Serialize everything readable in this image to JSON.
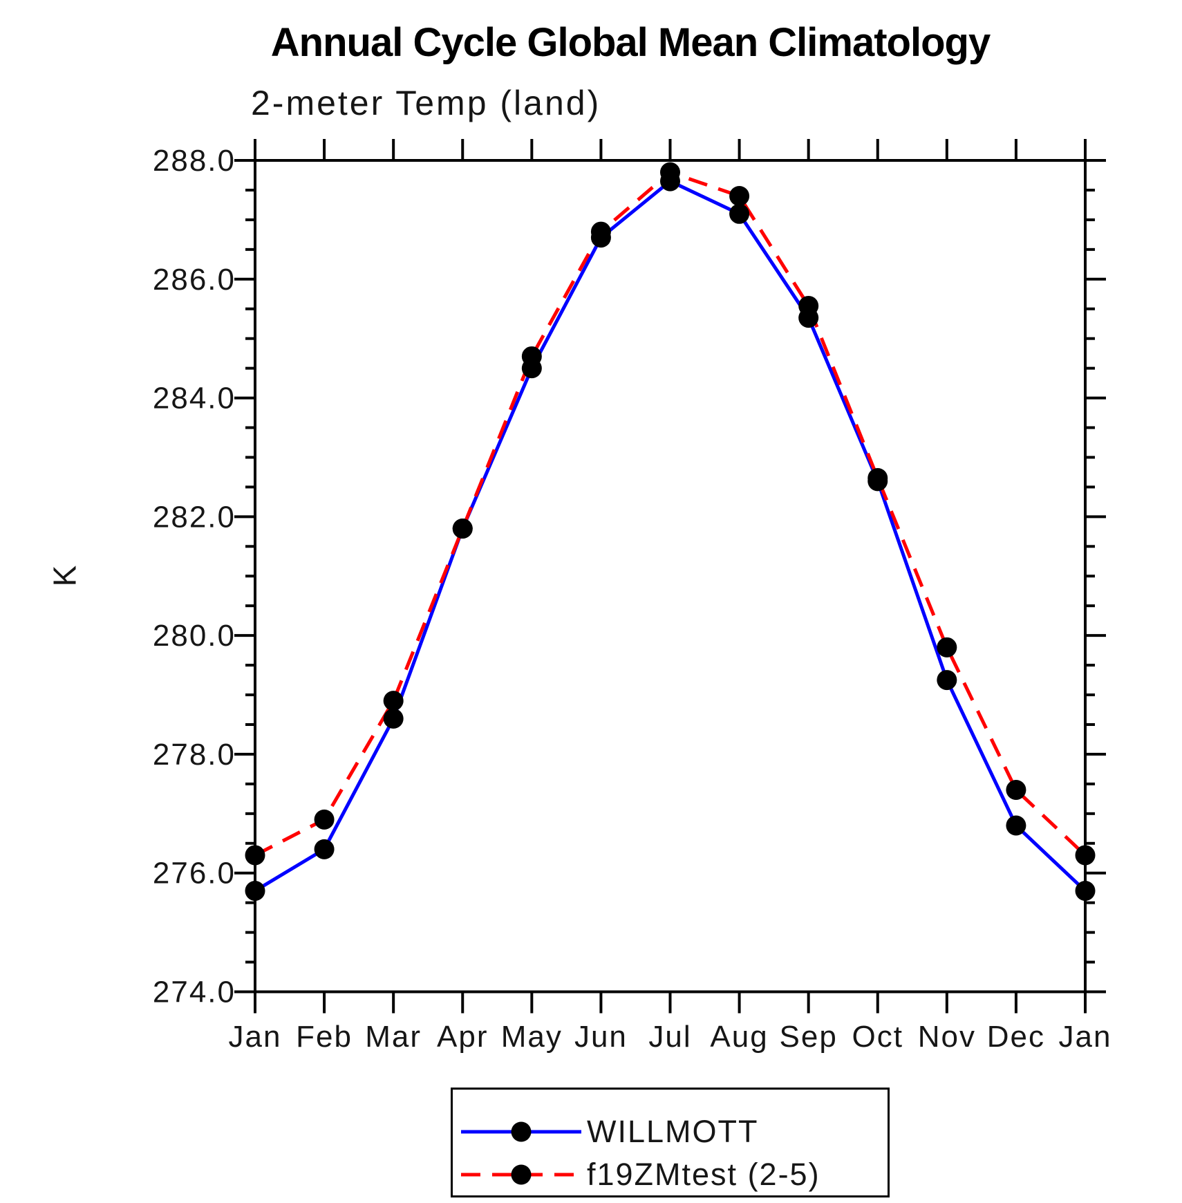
{
  "title": "Annual Cycle Global Mean Climatology",
  "subtitle": "2-meter Temp (land)",
  "y_axis": {
    "label": "K",
    "tick_labels": [
      "288.0",
      "286.0",
      "284.0",
      "282.0",
      "280.0",
      "278.0",
      "276.0",
      "274.0"
    ],
    "min": 274.0,
    "max": 288.0,
    "major_step": 2.0,
    "minor_step": 0.5
  },
  "x_axis": {
    "tick_labels": [
      "Jan",
      "Feb",
      "Mar",
      "Apr",
      "May",
      "Jun",
      "Jul",
      "Aug",
      "Sep",
      "Oct",
      "Nov",
      "Dec",
      "Jan"
    ]
  },
  "legend": {
    "entries": [
      {
        "label": "WILLMOTT",
        "color": "#0000ff",
        "style": "solid"
      },
      {
        "label": "f19ZMtest (2-5)",
        "color": "#ff0000",
        "style": "dashed"
      }
    ]
  },
  "colors": {
    "series_blue": "#0000ff",
    "series_red": "#ff0000",
    "axis": "#000000",
    "marker": "#000000"
  },
  "chart_data": {
    "type": "line",
    "title": "Annual Cycle Global Mean Climatology",
    "subtitle": "2-meter Temp (land)",
    "ylabel": "K",
    "ylim": [
      274.0,
      288.0
    ],
    "y_major_step": 2.0,
    "y_minor_step": 0.5,
    "grid": false,
    "legend_position": "bottom-center",
    "categories": [
      "Jan",
      "Feb",
      "Mar",
      "Apr",
      "May",
      "Jun",
      "Jul",
      "Aug",
      "Sep",
      "Oct",
      "Nov",
      "Dec",
      "Jan"
    ],
    "series": [
      {
        "name": "WILLMOTT",
        "color": "#0000ff",
        "line_style": "solid",
        "marker": "circle",
        "values": [
          275.7,
          276.4,
          278.6,
          281.8,
          284.5,
          286.7,
          287.65,
          287.1,
          285.35,
          282.6,
          279.25,
          276.8,
          275.7
        ]
      },
      {
        "name": "f19ZMtest (2-5)",
        "color": "#ff0000",
        "line_style": "dashed",
        "marker": "circle",
        "values": [
          276.3,
          276.9,
          278.9,
          281.8,
          284.7,
          286.8,
          287.8,
          287.4,
          285.55,
          282.65,
          279.8,
          277.4,
          276.3
        ]
      }
    ]
  }
}
